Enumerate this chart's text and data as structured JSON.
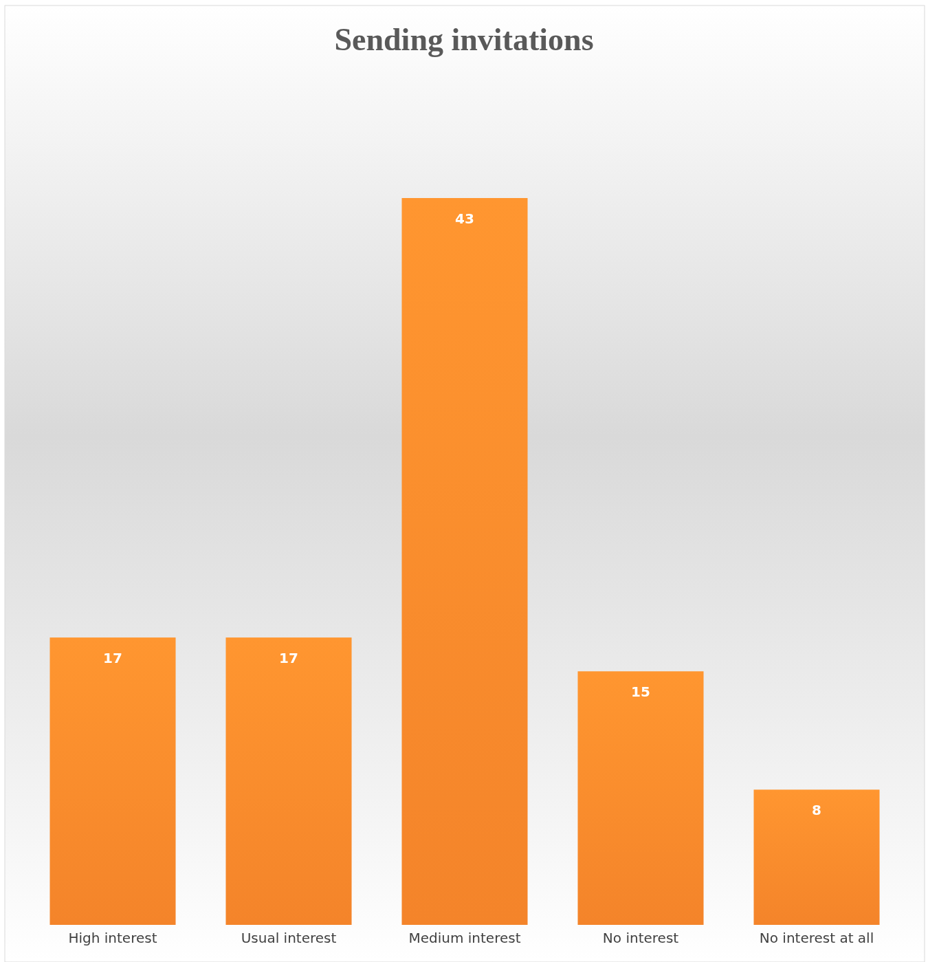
{
  "chart_data": {
    "type": "bar",
    "title": "Sending invitations",
    "categories": [
      "High interest",
      "Usual interest",
      "Medium interest",
      "No interest",
      "No interest at all"
    ],
    "values": [
      17,
      17,
      43,
      15,
      8
    ],
    "color": "#f4842a",
    "data_labels": true
  }
}
